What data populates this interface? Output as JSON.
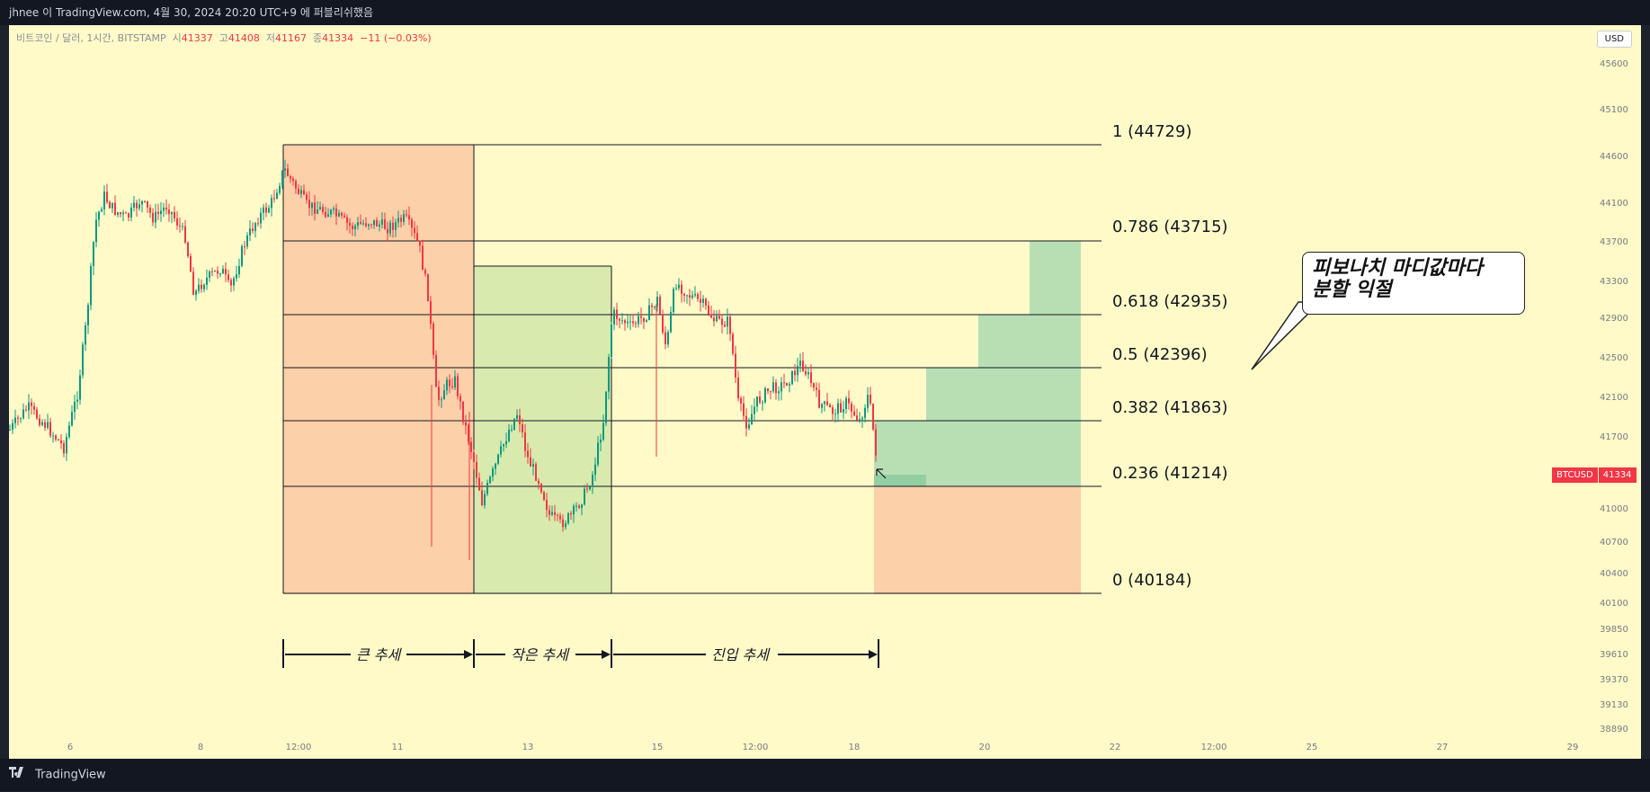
{
  "header": {
    "title": "jhnee 이 TradingView.com, 4월 30, 2024 20:20 UTC+9 에 퍼블리쉬했음"
  },
  "legend": {
    "symbol": "비트코인 / 달러, 1시간, BITSTAMP",
    "open_label": "시",
    "open": "41337",
    "high_label": "고",
    "high": "41408",
    "low_label": "저",
    "low": "41167",
    "close_label": "종",
    "close": "41334",
    "change": "−11 (−0.03%)"
  },
  "currency_button": "USD",
  "price_axis": [
    "45600",
    "45100",
    "44600",
    "44100",
    "43700",
    "43300",
    "42900",
    "42500",
    "42100",
    "41700",
    "41000",
    "40700",
    "40400",
    "40100",
    "39850",
    "39610",
    "39370",
    "39130",
    "38890"
  ],
  "time_axis": [
    "6",
    "8",
    "12:00",
    "11",
    "13",
    "15",
    "12:00",
    "18",
    "20",
    "22",
    "12:00",
    "25",
    "27",
    "29"
  ],
  "fib_levels": [
    "1 (44729)",
    "0.786 (43715)",
    "0.618 (42935)",
    "0.5 (42396)",
    "0.382 (41863)",
    "0.236 (41214)",
    "0 (40184)"
  ],
  "trends": [
    "큰 추세",
    "작은 추세",
    "진입 추세"
  ],
  "callout": {
    "line1": "피보나치 마디값마다",
    "line2": "분할 익절"
  },
  "price_tag": {
    "symbol": "BTCUSD",
    "price": "41334"
  },
  "footer": {
    "brand": "TradingView"
  },
  "colors": {
    "background": "#fffac8",
    "up": "#089981",
    "down": "#f23645",
    "zone_red": "#fcd0a8",
    "zone_green": "#d8eaad",
    "target_green": "#b8dfb4"
  }
}
